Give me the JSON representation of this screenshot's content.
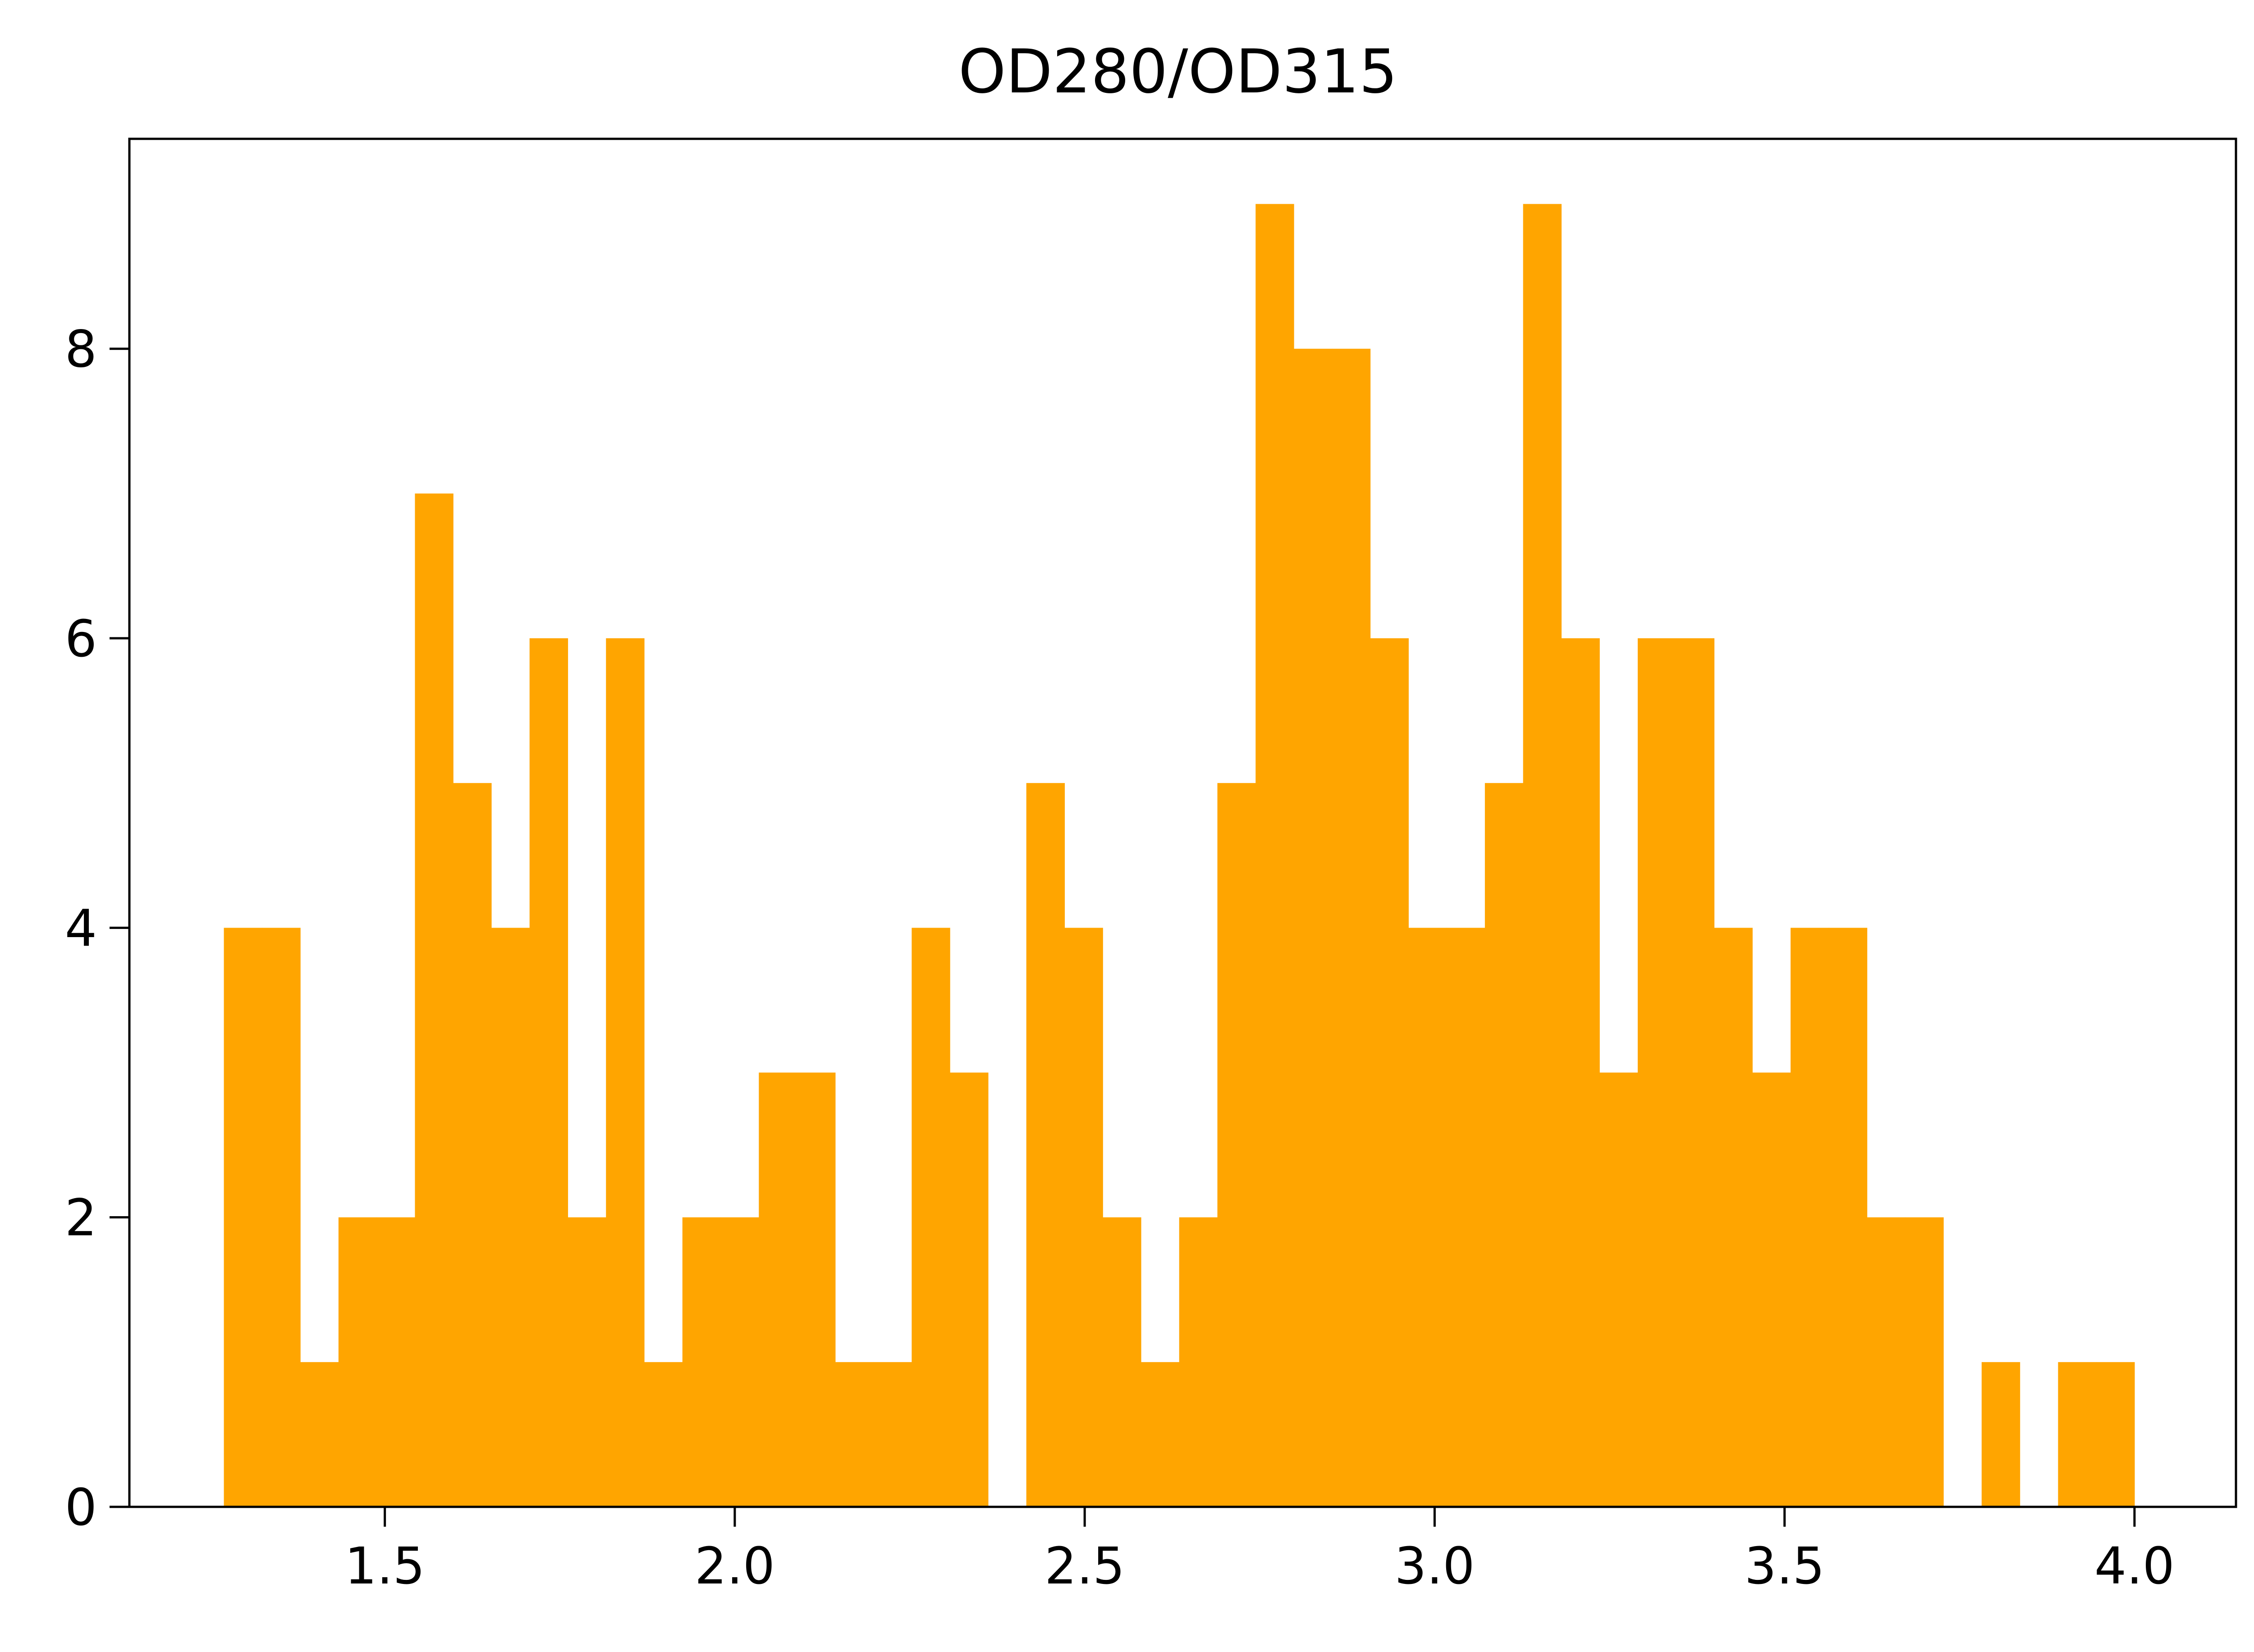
{
  "chart_data": {
    "type": "bar",
    "title": "OD280/OD315",
    "xlabel": "",
    "ylabel": "",
    "bar_color": "#ffa500",
    "axis_color": "#000000",
    "xlim": [
      1.135,
      4.145
    ],
    "ylim": [
      0,
      9.45
    ],
    "xticks": [
      1.5,
      2.0,
      2.5,
      3.0,
      3.5,
      4.0
    ],
    "xtick_labels": [
      "1.5",
      "2.0",
      "2.5",
      "3.0",
      "3.5",
      "4.0"
    ],
    "yticks": [
      0,
      2,
      4,
      6,
      8
    ],
    "ytick_labels": [
      "0",
      "2",
      "4",
      "6",
      "8"
    ],
    "grid": false,
    "legend": false,
    "bin_start": 1.27,
    "bin_width": 0.0546,
    "counts": [
      4,
      4,
      1,
      2,
      2,
      7,
      5,
      4,
      6,
      2,
      6,
      1,
      2,
      2,
      3,
      3,
      1,
      1,
      4,
      3,
      0,
      5,
      4,
      2,
      1,
      2,
      5,
      9,
      8,
      8,
      6,
      4,
      4,
      5,
      9,
      6,
      3,
      6,
      6,
      4,
      3,
      4,
      4,
      2,
      2,
      0,
      1,
      0,
      1,
      1
    ]
  }
}
